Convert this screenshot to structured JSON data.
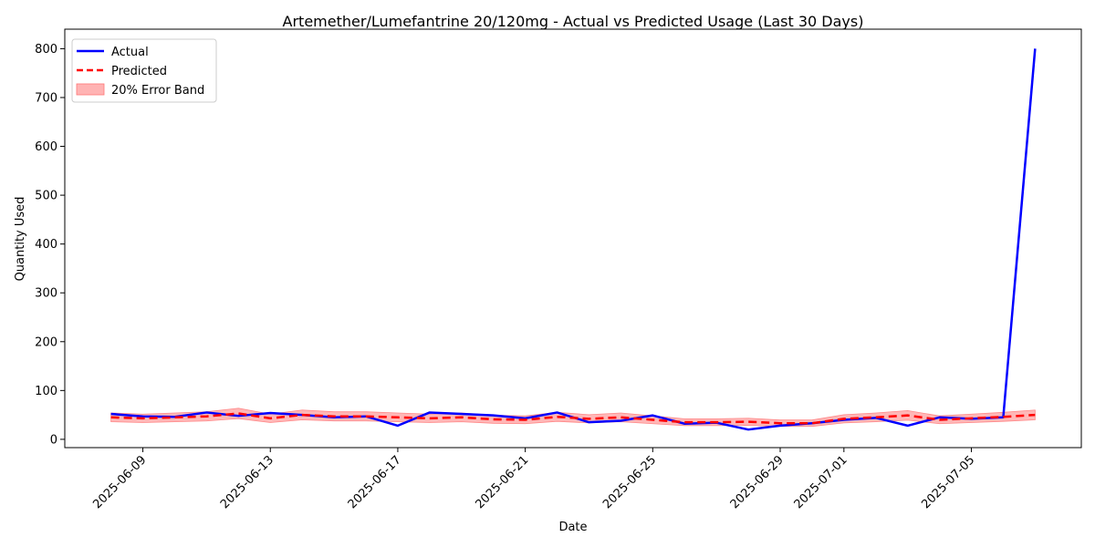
{
  "chart_data": {
    "type": "line",
    "title": "Artemether/Lumefantrine 20/120mg - Actual vs Predicted Usage (Last 30 Days)",
    "xlabel": "Date",
    "ylabel": "Quantity Used",
    "x_start": "2025-06-08",
    "x": [
      "2025-06-08",
      "2025-06-09",
      "2025-06-10",
      "2025-06-11",
      "2025-06-12",
      "2025-06-13",
      "2025-06-14",
      "2025-06-15",
      "2025-06-16",
      "2025-06-17",
      "2025-06-18",
      "2025-06-19",
      "2025-06-20",
      "2025-06-21",
      "2025-06-22",
      "2025-06-23",
      "2025-06-24",
      "2025-06-25",
      "2025-06-26",
      "2025-06-27",
      "2025-06-28",
      "2025-06-29",
      "2025-06-30",
      "2025-07-01",
      "2025-07-02",
      "2025-07-03",
      "2025-07-04",
      "2025-07-05",
      "2025-07-06",
      "2025-07-07"
    ],
    "xticks": [
      "2025-06-09",
      "2025-06-13",
      "2025-06-17",
      "2025-06-21",
      "2025-06-25",
      "2025-06-29",
      "2025-07-01",
      "2025-07-05"
    ],
    "ylim": [
      -17,
      840
    ],
    "yticks": [
      0,
      100,
      200,
      300,
      400,
      500,
      600,
      700,
      800
    ],
    "grid": false,
    "legend_position": "upper left",
    "series": [
      {
        "name": "Actual",
        "color": "#0000ff",
        "style": "solid",
        "values": [
          52,
          47,
          46,
          55,
          48,
          54,
          50,
          45,
          47,
          28,
          55,
          52,
          49,
          43,
          55,
          35,
          38,
          49,
          32,
          34,
          20,
          28,
          33,
          40,
          44,
          28,
          45,
          42,
          45,
          800
        ]
      },
      {
        "name": "Predicted",
        "color": "#ff0000",
        "style": "dashed",
        "values": [
          45,
          43,
          45,
          47,
          53,
          43,
          50,
          47,
          47,
          45,
          43,
          45,
          41,
          40,
          46,
          42,
          45,
          40,
          35,
          35,
          36,
          33,
          33,
          42,
          45,
          49,
          40,
          43,
          46,
          50
        ]
      },
      {
        "name": "20% Error Band",
        "color": "#ff9999",
        "style": "band",
        "lower": [
          36,
          34.4,
          36,
          37.6,
          42.4,
          34.4,
          40,
          37.6,
          37.6,
          36,
          34.4,
          36,
          32.8,
          32,
          36.8,
          33.6,
          36,
          32,
          28,
          28,
          28.8,
          26.4,
          26.4,
          33.6,
          36,
          39.2,
          32,
          34.4,
          36.8,
          40
        ],
        "upper": [
          54,
          51.6,
          54,
          56.4,
          63.6,
          51.6,
          60,
          56.4,
          56.4,
          54,
          51.6,
          54,
          49.2,
          48,
          55.2,
          50.4,
          54,
          48,
          42,
          42,
          43.2,
          39.6,
          39.6,
          50.4,
          54,
          58.8,
          48,
          51.6,
          55.2,
          60
        ]
      }
    ]
  }
}
